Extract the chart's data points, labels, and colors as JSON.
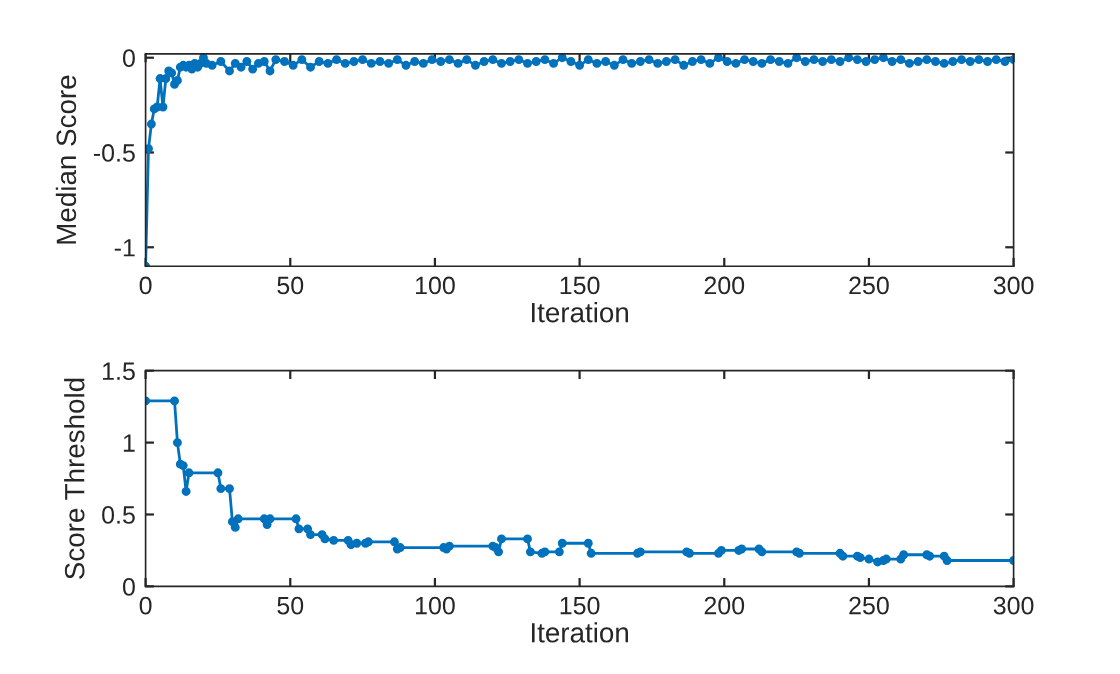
{
  "chart_data": [
    {
      "type": "line",
      "xlabel": "Iteration",
      "ylabel": "Median Score",
      "xlim": [
        0,
        300
      ],
      "xticks": [
        0,
        50,
        100,
        150,
        200,
        250,
        300
      ],
      "ylim": [
        -1.1,
        0.02
      ],
      "yticks": [
        {
          "value": -1,
          "label": "-1"
        },
        {
          "value": -0.5,
          "label": "-0.5"
        },
        0
      ],
      "marker": "circle",
      "line_style": "solid",
      "grid": false,
      "series": [
        {
          "color": "#0072bd",
          "x": [
            0,
            1,
            2,
            3,
            4,
            5,
            6,
            7,
            8,
            9,
            10,
            11,
            12,
            13,
            14,
            15,
            16,
            17,
            18,
            19,
            20,
            21,
            23,
            26,
            29,
            31,
            33,
            35,
            37,
            39,
            41,
            43,
            45,
            48,
            51,
            54,
            57,
            60,
            63,
            66,
            69,
            72,
            75,
            78,
            81,
            84,
            87,
            90,
            93,
            96,
            99,
            102,
            105,
            108,
            111,
            114,
            117,
            120,
            123,
            126,
            129,
            132,
            135,
            138,
            141,
            144,
            147,
            150,
            153,
            156,
            159,
            162,
            165,
            168,
            171,
            174,
            177,
            180,
            183,
            186,
            189,
            192,
            195,
            198,
            201,
            204,
            207,
            210,
            213,
            216,
            219,
            222,
            225,
            228,
            231,
            234,
            237,
            240,
            243,
            246,
            249,
            252,
            255,
            258,
            261,
            264,
            267,
            270,
            273,
            276,
            279,
            282,
            285,
            288,
            291,
            294,
            297,
            300
          ],
          "values": [
            -1.1,
            -0.48,
            -0.35,
            -0.27,
            -0.26,
            -0.11,
            -0.26,
            -0.11,
            -0.07,
            -0.08,
            -0.14,
            -0.12,
            -0.05,
            -0.04,
            -0.05,
            -0.04,
            -0.06,
            -0.03,
            -0.05,
            -0.03,
            0.0,
            -0.03,
            -0.04,
            -0.02,
            -0.07,
            -0.03,
            -0.05,
            -0.02,
            -0.06,
            -0.03,
            -0.02,
            -0.07,
            -0.01,
            -0.02,
            -0.04,
            -0.01,
            -0.05,
            -0.02,
            -0.03,
            -0.01,
            -0.03,
            -0.02,
            -0.01,
            -0.03,
            -0.02,
            -0.03,
            -0.01,
            -0.04,
            -0.02,
            -0.03,
            -0.01,
            -0.02,
            -0.01,
            -0.03,
            -0.01,
            -0.04,
            -0.02,
            -0.01,
            -0.03,
            -0.02,
            -0.01,
            -0.03,
            -0.02,
            -0.01,
            -0.03,
            0.0,
            -0.02,
            -0.04,
            -0.01,
            -0.03,
            -0.02,
            -0.04,
            -0.01,
            -0.03,
            -0.02,
            -0.01,
            -0.03,
            -0.02,
            -0.01,
            -0.04,
            -0.02,
            -0.01,
            -0.03,
            0.0,
            -0.02,
            -0.03,
            -0.01,
            -0.02,
            -0.03,
            -0.01,
            -0.02,
            -0.03,
            0.0,
            -0.02,
            -0.01,
            -0.02,
            -0.01,
            -0.02,
            0.0,
            -0.01,
            -0.02,
            -0.01,
            0.0,
            -0.02,
            -0.01,
            -0.03,
            -0.02,
            -0.01,
            -0.02,
            -0.03,
            -0.02,
            -0.01,
            -0.02,
            -0.01,
            -0.02,
            -0.01,
            -0.02,
            -0.01
          ]
        }
      ]
    },
    {
      "type": "line",
      "xlabel": "Iteration",
      "ylabel": "Score Threshold",
      "xlim": [
        0,
        300
      ],
      "xticks": [
        0,
        50,
        100,
        150,
        200,
        250,
        300
      ],
      "ylim": [
        0,
        1.5
      ],
      "yticks": [
        0,
        0.5,
        1,
        1.5
      ],
      "marker": "circle",
      "line_style": "solid",
      "grid": false,
      "series": [
        {
          "color": "#0072bd",
          "x": [
            0,
            10,
            11,
            12,
            13,
            14,
            15,
            25,
            26,
            29,
            30,
            31,
            32,
            41,
            42,
            43,
            52,
            53,
            56,
            57,
            61,
            62,
            65,
            70,
            71,
            73,
            76,
            77,
            86,
            87,
            88,
            103,
            104,
            105,
            120,
            121,
            122,
            123,
            132,
            133,
            137,
            138,
            143,
            144,
            153,
            154,
            170,
            171,
            187,
            188,
            198,
            199,
            205,
            206,
            212,
            213,
            225,
            226,
            240,
            241,
            246,
            247,
            250,
            253,
            255,
            256,
            261,
            262,
            270,
            271,
            276,
            277,
            300
          ],
          "values": [
            1.29,
            1.29,
            1.0,
            0.85,
            0.84,
            0.66,
            0.79,
            0.79,
            0.68,
            0.68,
            0.45,
            0.41,
            0.47,
            0.47,
            0.43,
            0.47,
            0.47,
            0.4,
            0.4,
            0.36,
            0.36,
            0.33,
            0.32,
            0.32,
            0.29,
            0.3,
            0.3,
            0.31,
            0.31,
            0.26,
            0.27,
            0.27,
            0.26,
            0.28,
            0.28,
            0.27,
            0.24,
            0.33,
            0.33,
            0.24,
            0.23,
            0.24,
            0.24,
            0.3,
            0.3,
            0.23,
            0.23,
            0.24,
            0.24,
            0.23,
            0.23,
            0.25,
            0.25,
            0.26,
            0.26,
            0.24,
            0.24,
            0.23,
            0.23,
            0.21,
            0.21,
            0.2,
            0.19,
            0.17,
            0.18,
            0.19,
            0.19,
            0.22,
            0.22,
            0.21,
            0.21,
            0.18,
            0.18
          ]
        }
      ]
    }
  ]
}
